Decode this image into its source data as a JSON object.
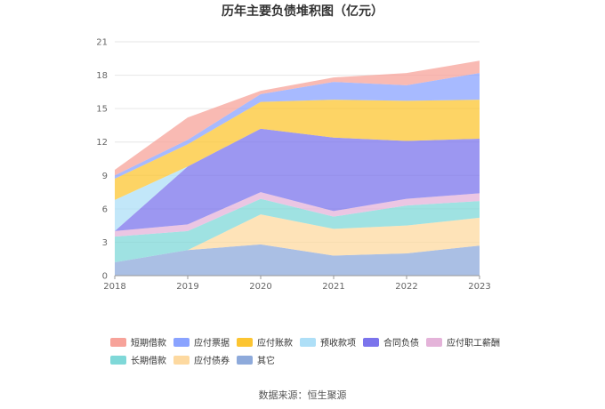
{
  "chart_data": {
    "type": "area",
    "stacked": true,
    "title": "历年主要负债堆积图（亿元）",
    "x": [
      "2018",
      "2019",
      "2020",
      "2021",
      "2022",
      "2023"
    ],
    "ylim": [
      0,
      21
    ],
    "yticks": [
      0,
      3,
      6,
      9,
      12,
      15,
      18,
      21
    ],
    "grid": true,
    "legend_position": "bottom",
    "series": [
      {
        "name": "其它",
        "color": "#8eaadb",
        "values": [
          1.2,
          2.3,
          2.8,
          1.8,
          2.0,
          2.7
        ]
      },
      {
        "name": "应付债券",
        "color": "#fdd9a0",
        "values": [
          0.0,
          0.0,
          2.7,
          2.4,
          2.5,
          2.5
        ]
      },
      {
        "name": "长期借款",
        "color": "#7fd8d8",
        "values": [
          2.3,
          1.7,
          1.4,
          1.1,
          1.8,
          1.5
        ]
      },
      {
        "name": "应付职工薪酬",
        "color": "#e4b3d9",
        "values": [
          0.5,
          0.6,
          0.6,
          0.5,
          0.6,
          0.7
        ]
      },
      {
        "name": "合同负债",
        "color": "#7b74ec",
        "values": [
          0.0,
          5.2,
          5.7,
          6.6,
          5.2,
          4.9
        ]
      },
      {
        "name": "预收款项",
        "color": "#aedff7",
        "values": [
          2.8,
          0.0,
          0.0,
          0.0,
          0.0,
          0.0
        ]
      },
      {
        "name": "应付账款",
        "color": "#fcc532",
        "values": [
          1.9,
          2.0,
          2.4,
          3.4,
          3.6,
          3.5
        ]
      },
      {
        "name": "应付票据",
        "color": "#8aa3ff",
        "values": [
          0.3,
          0.4,
          0.7,
          1.6,
          1.4,
          2.4
        ]
      },
      {
        "name": "短期借款",
        "color": "#f7a39a",
        "values": [
          0.5,
          2.0,
          0.3,
          0.4,
          1.1,
          1.1
        ]
      }
    ],
    "legend_order": [
      "短期借款",
      "应付票据",
      "应付账款",
      "预收款项",
      "合同负债",
      "应付职工薪酬",
      "长期借款",
      "应付债券",
      "其它"
    ]
  },
  "source_text": "数据来源：恒生聚源"
}
